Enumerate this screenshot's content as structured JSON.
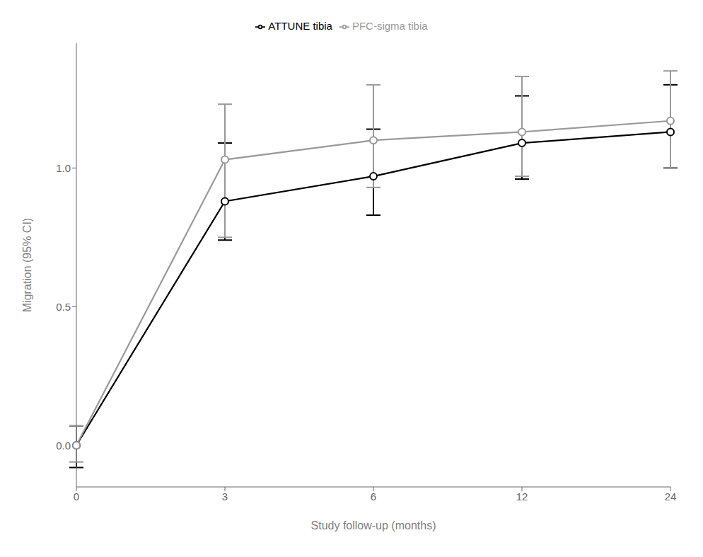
{
  "chart_data": {
    "type": "line",
    "xlabel": "Study follow-up (months)",
    "ylabel": "Migration (95% CI)",
    "categories": [
      "0",
      "3",
      "6",
      "12",
      "24"
    ],
    "series": [
      {
        "name": "ATTUNE tibia",
        "color": "#000000",
        "marker": "circle",
        "values": [
          0.0,
          0.88,
          0.97,
          1.09,
          1.13
        ],
        "yerr_lower": [
          0.08,
          0.14,
          0.14,
          0.13,
          0.13
        ],
        "yerr_upper": [
          0.07,
          0.21,
          0.17,
          0.17,
          0.17
        ]
      },
      {
        "name": "PFC-sigma tibia",
        "color": "#999999",
        "marker": "circle",
        "values": [
          0.0,
          1.03,
          1.1,
          1.13,
          1.17
        ],
        "yerr_lower": [
          0.06,
          0.28,
          0.17,
          0.16,
          0.17
        ],
        "yerr_upper": [
          0.07,
          0.2,
          0.2,
          0.2,
          0.18
        ]
      }
    ],
    "ylim": [
      -0.15,
      1.45
    ],
    "yticks": [
      {
        "value": 0.0,
        "label": "0.0"
      },
      {
        "value": 0.5,
        "label": "0.5"
      },
      {
        "value": 1.0,
        "label": "1.0"
      }
    ],
    "grid": false,
    "legend": "top"
  }
}
